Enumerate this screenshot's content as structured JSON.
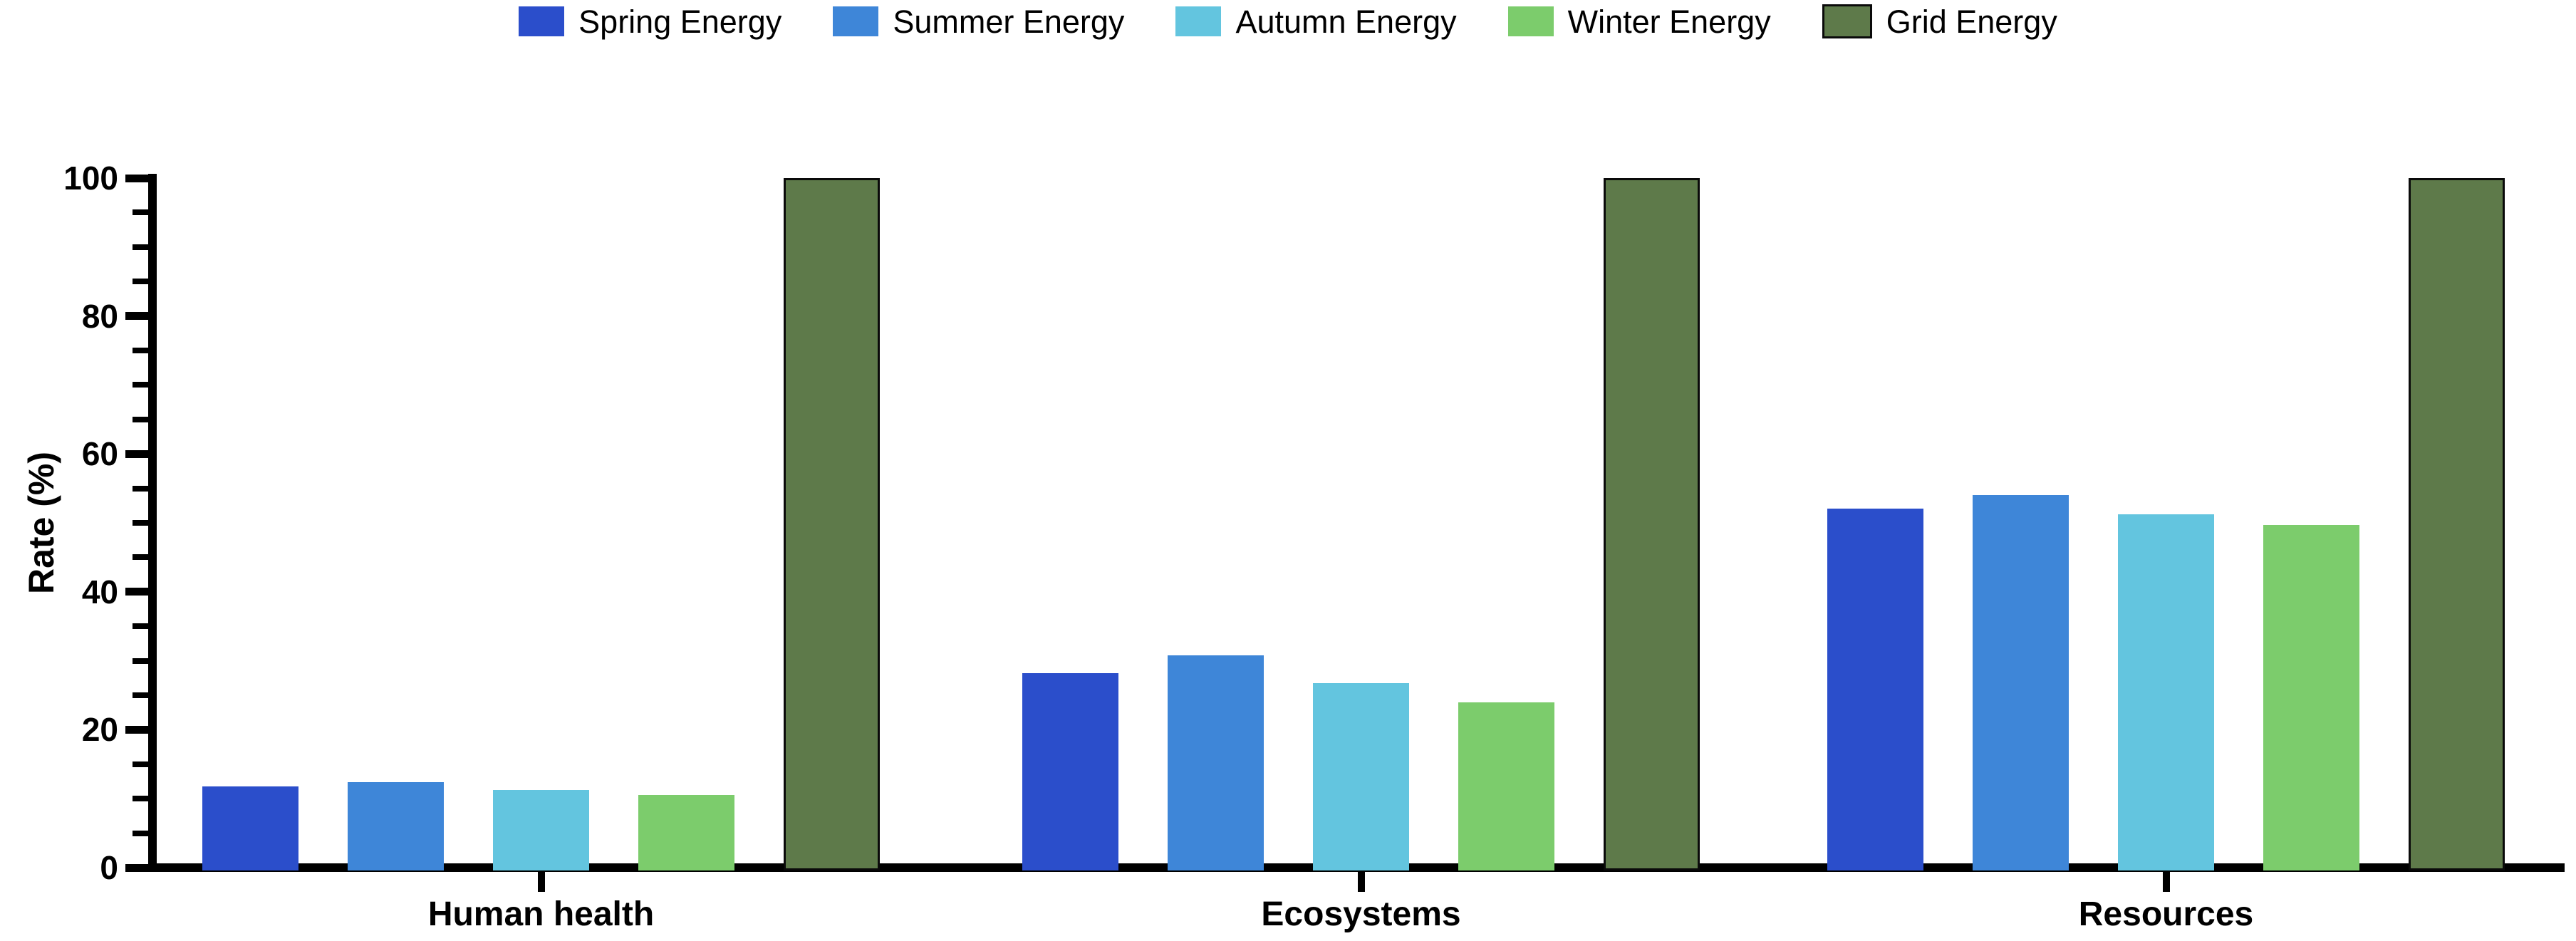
{
  "chart_data": {
    "type": "bar",
    "title": "",
    "categories": [
      "Human health",
      "Ecosystems",
      "Resources"
    ],
    "series": [
      {
        "name": "Spring Energy",
        "color": "#2b4ecb",
        "values": [
          11.8,
          28.2,
          52.1
        ]
      },
      {
        "name": "Summer Energy",
        "color": "#3e86d8",
        "values": [
          12.4,
          30.8,
          54.0
        ]
      },
      {
        "name": "Autumn Energy",
        "color": "#63c5df",
        "values": [
          11.3,
          26.8,
          51.2
        ]
      },
      {
        "name": "Winter Energy",
        "color": "#7ccc6c",
        "values": [
          10.5,
          24.0,
          49.7
        ]
      },
      {
        "name": "Grid Energy",
        "color": "#5e7a4a",
        "border_color": "#0a0a0a",
        "values": [
          100,
          100,
          100
        ]
      }
    ],
    "xlabel": "",
    "ylabel": "Rate (%)",
    "ylim": [
      0,
      100
    ],
    "ytick_step": 20,
    "yminor_tick_step": 5,
    "legend_position": "top",
    "grid": false,
    "background_color": "#ffffff",
    "axis_color": "#000000"
  }
}
